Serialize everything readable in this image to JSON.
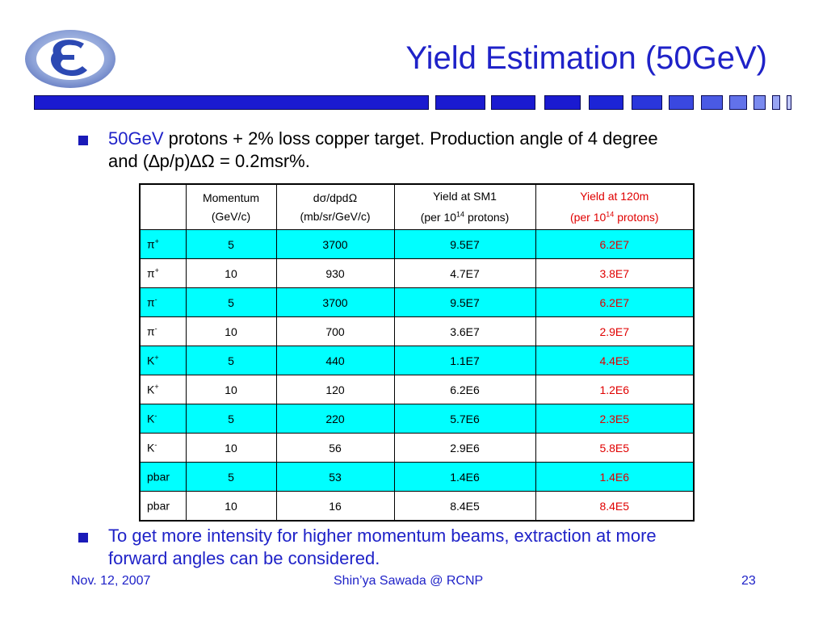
{
  "slide": {
    "title": "Yield Estimation (50GeV)",
    "bullets": [
      {
        "highlight": "50GeV",
        "line1_rest": " protons + 2% loss copper target.  Production angle of 4 degree",
        "line2": "and (∆p/p)∆Ω = 0.2msr%."
      },
      {
        "line1": "To get more intensity for higher momentum beams, extraction at more",
        "line2": "forward angles can be considered."
      }
    ]
  },
  "colors": {
    "title": "#1f22c8",
    "bar_blue": "#1a1ad0",
    "row_highlight": "#00ffff",
    "red_column": "#e00000"
  },
  "table": {
    "headers": [
      {
        "l1": "",
        "l2": ""
      },
      {
        "l1": "Momentum",
        "l2": "(GeV/c)"
      },
      {
        "l1": "dσ/dpdΩ",
        "l2": "(mb/sr/GeV/c)"
      },
      {
        "l1": "Yield at SM1",
        "l2a": "(per 10",
        "sup": "14",
        "l2b": " protons)"
      },
      {
        "l1": "Yield at 120m",
        "l2a": "(per 10",
        "sup": "14",
        "l2b": " protons)"
      }
    ],
    "rows": [
      {
        "particle": "π",
        "charge": "+",
        "momentum": "5",
        "dsigma": "3700",
        "yield_sm1": "9.5E7",
        "yield_120m": "6.2E7",
        "highlight": true
      },
      {
        "particle": "π",
        "charge": "+",
        "momentum": "10",
        "dsigma": "930",
        "yield_sm1": "4.7E7",
        "yield_120m": "3.8E7",
        "highlight": false
      },
      {
        "particle": "π",
        "charge": "-",
        "momentum": "5",
        "dsigma": "3700",
        "yield_sm1": "9.5E7",
        "yield_120m": "6.2E7",
        "highlight": true
      },
      {
        "particle": "π",
        "charge": "-",
        "momentum": "10",
        "dsigma": "700",
        "yield_sm1": "3.6E7",
        "yield_120m": "2.9E7",
        "highlight": false
      },
      {
        "particle": "K",
        "charge": "+",
        "momentum": "5",
        "dsigma": "440",
        "yield_sm1": "1.1E7",
        "yield_120m": "4.4E5",
        "highlight": true
      },
      {
        "particle": "K",
        "charge": "+",
        "momentum": "10",
        "dsigma": "120",
        "yield_sm1": "6.2E6",
        "yield_120m": "1.2E6",
        "highlight": false
      },
      {
        "particle": "K",
        "charge": "-",
        "momentum": "5",
        "dsigma": "220",
        "yield_sm1": "5.7E6",
        "yield_120m": "2.3E5",
        "highlight": true
      },
      {
        "particle": "K",
        "charge": "-",
        "momentum": "10",
        "dsigma": "56",
        "yield_sm1": "2.9E6",
        "yield_120m": "5.8E5",
        "highlight": false
      },
      {
        "particle": "pbar",
        "charge": "",
        "momentum": "5",
        "dsigma": "53",
        "yield_sm1": "1.4E6",
        "yield_120m": "1.4E6",
        "highlight": true
      },
      {
        "particle": "pbar",
        "charge": "",
        "momentum": "10",
        "dsigma": "16",
        "yield_sm1": "8.4E5",
        "yield_120m": "8.4E5",
        "highlight": false
      }
    ]
  },
  "footer": {
    "date": "Nov. 12, 2007",
    "author": "Shin’ya Sawada @ RCNP",
    "page": "23"
  }
}
